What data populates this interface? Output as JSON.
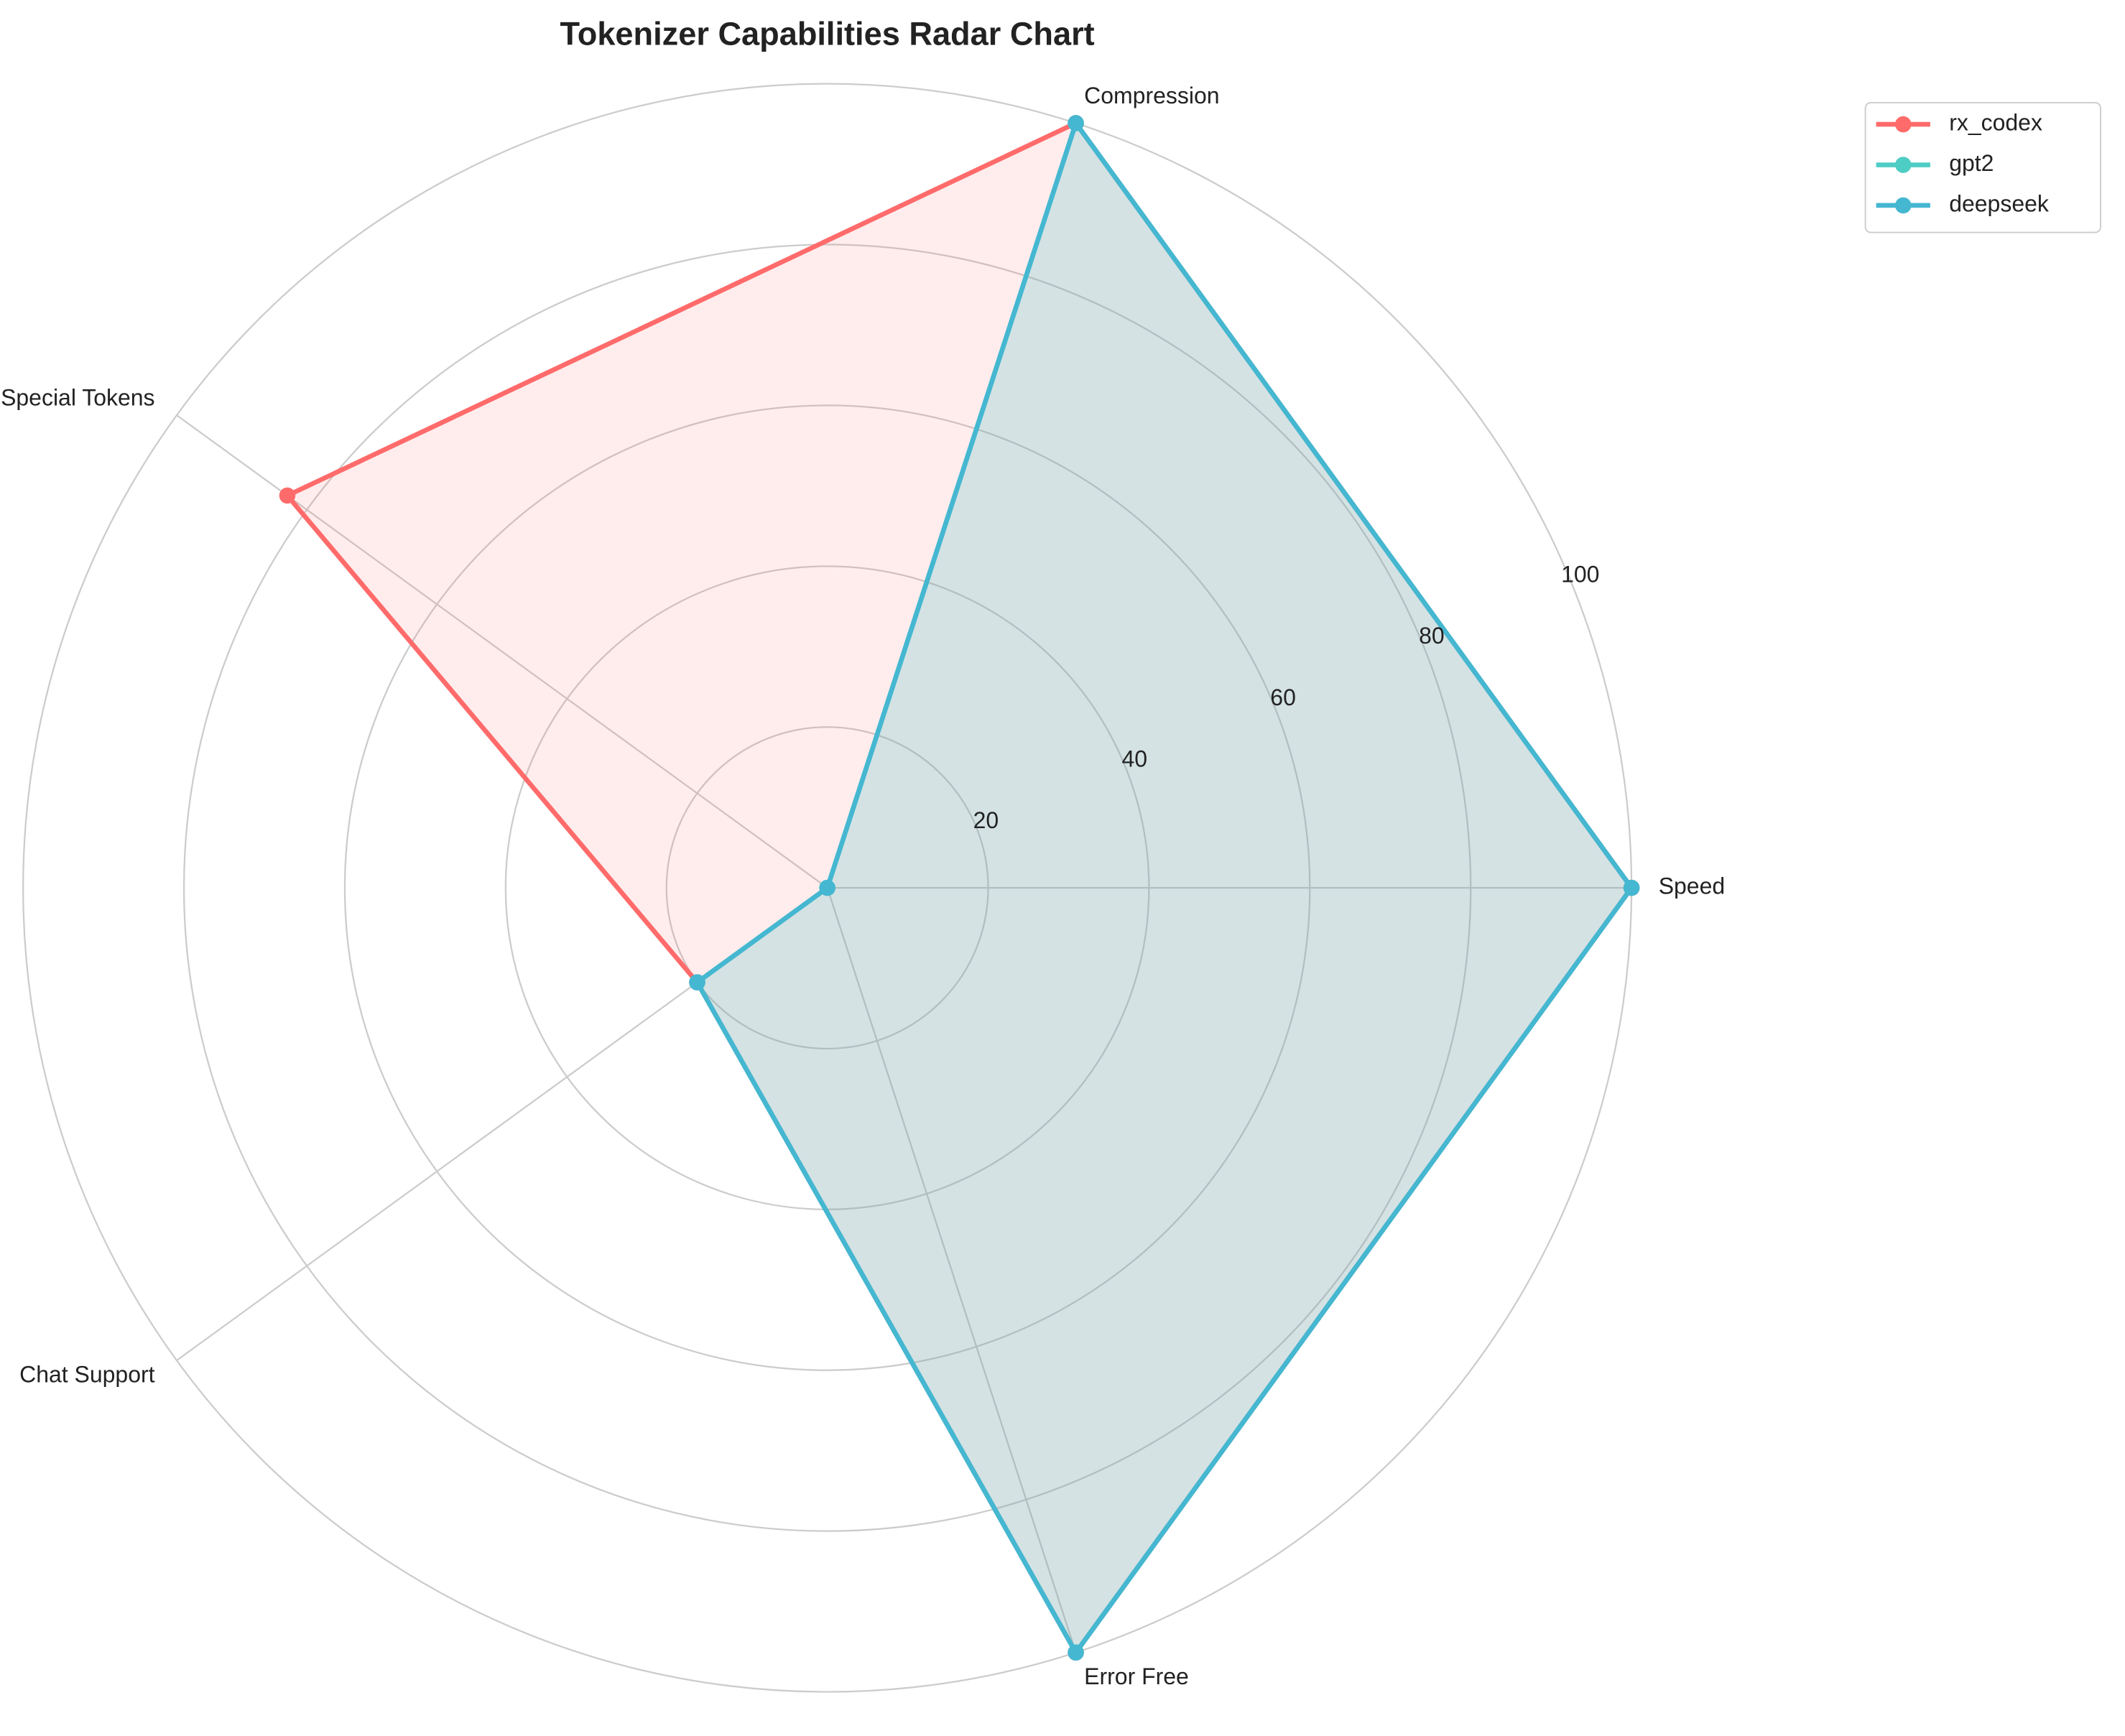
{
  "chart_data": {
    "type": "radar",
    "title": "Tokenizer Capabilities Radar Chart",
    "categories": [
      "Speed",
      "Compression",
      "Special Tokens",
      "Chat Support",
      "Error Free"
    ],
    "series": [
      {
        "name": "rx_codex",
        "color": "#FF6B6B",
        "values": [
          100,
          100,
          83,
          20,
          100
        ]
      },
      {
        "name": "gpt2",
        "color": "#4ECDC4",
        "values": [
          100,
          100,
          0,
          20,
          100
        ]
      },
      {
        "name": "deepseek",
        "color": "#45B7D1",
        "values": [
          100,
          100,
          0,
          20,
          100
        ]
      }
    ],
    "ylim": [
      0,
      100
    ],
    "yticks": [
      20,
      40,
      60,
      80,
      100
    ],
    "grid": true,
    "legend": "upper right"
  }
}
